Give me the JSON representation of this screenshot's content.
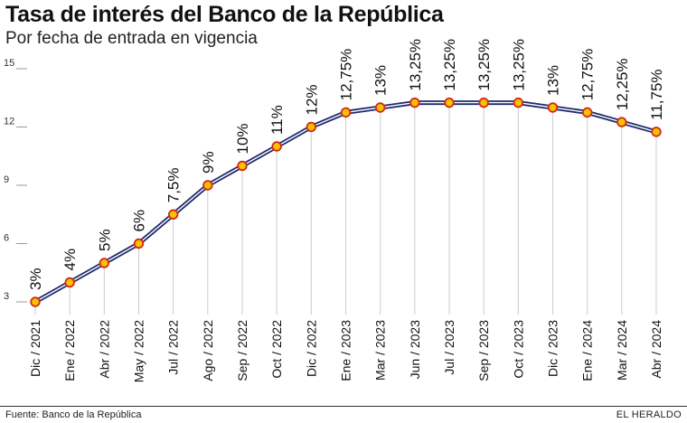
{
  "title": "Tasa de interés del Banco de la República",
  "subtitle": "Por fecha de entrada en vigencia",
  "source": "Fuente: Banco de la República",
  "brand": "EL HERALDO",
  "colors": {
    "line_outer": "#1f2a6b",
    "line_inner": "#ffffff",
    "marker_fill": "#f5c400",
    "marker_stroke": "#d62718",
    "grid": "#cccccc"
  },
  "chart_data": {
    "type": "line",
    "title": "Tasa de interés del Banco de la República",
    "subtitle": "Por fecha de entrada en vigencia",
    "xlabel": "",
    "ylabel": "",
    "ylim": [
      3,
      15
    ],
    "yticks": [
      3,
      6,
      9,
      12,
      15
    ],
    "grid": "vertical",
    "categories": [
      "Dic / 2021",
      "Ene / 2022",
      "Abr / 2022",
      "May / 2022",
      "Jul / 2022",
      "Ago / 2022",
      "Sep / 2022",
      "Oct / 2022",
      "Dic / 2022",
      "Ene / 2023",
      "Mar / 2023",
      "Jun / 2023",
      "Jul / 2023",
      "Sep / 2023",
      "Oct / 2023",
      "Dic / 2023",
      "Ene / 2024",
      "Mar / 2024",
      "Abr / 2024"
    ],
    "values": [
      3,
      4,
      5,
      6,
      7.5,
      9,
      10,
      11,
      12,
      12.75,
      13,
      13.25,
      13.25,
      13.25,
      13.25,
      13,
      12.75,
      12.25,
      11.75
    ],
    "data_labels": [
      "3%",
      "4%",
      "5%",
      "6%",
      "7,5%",
      "9%",
      "10%",
      "11%",
      "12%",
      "12,75%",
      "13%",
      "13,25%",
      "13,25%",
      "13,25%",
      "13,25%",
      "13%",
      "12,75%",
      "12,25%",
      "11,75%"
    ]
  }
}
